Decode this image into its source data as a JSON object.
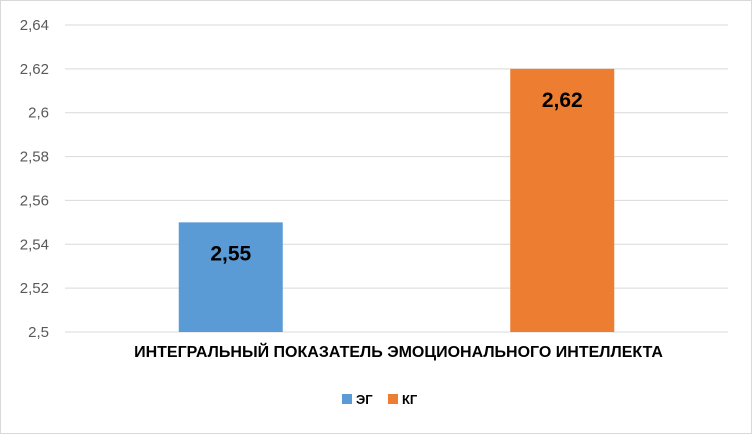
{
  "chart_data": {
    "type": "bar",
    "categories": [
      "ИНТЕГРАЛЬНЫЙ ПОКАЗАТЕЛЬ ЭМОЦИОНАЛЬНОГО ИНТЕЛЛЕКТА"
    ],
    "series": [
      {
        "name": "ЭГ",
        "values": [
          2.55
        ],
        "color": "#5b9bd5",
        "label": "2,55"
      },
      {
        "name": "КГ",
        "values": [
          2.62
        ],
        "color": "#ed7d31",
        "label": "2,62"
      }
    ],
    "ylim": [
      2.5,
      2.64
    ],
    "yticks": [
      2.5,
      2.52,
      2.54,
      2.56,
      2.58,
      2.6,
      2.62,
      2.64
    ],
    "ytick_labels": [
      "2,5",
      "2,52",
      "2,54",
      "2,56",
      "2,58",
      "2,6",
      "2,62",
      "2,64"
    ],
    "grid": true,
    "legend_position": "bottom",
    "title": "",
    "xlabel": "",
    "ylabel": ""
  }
}
